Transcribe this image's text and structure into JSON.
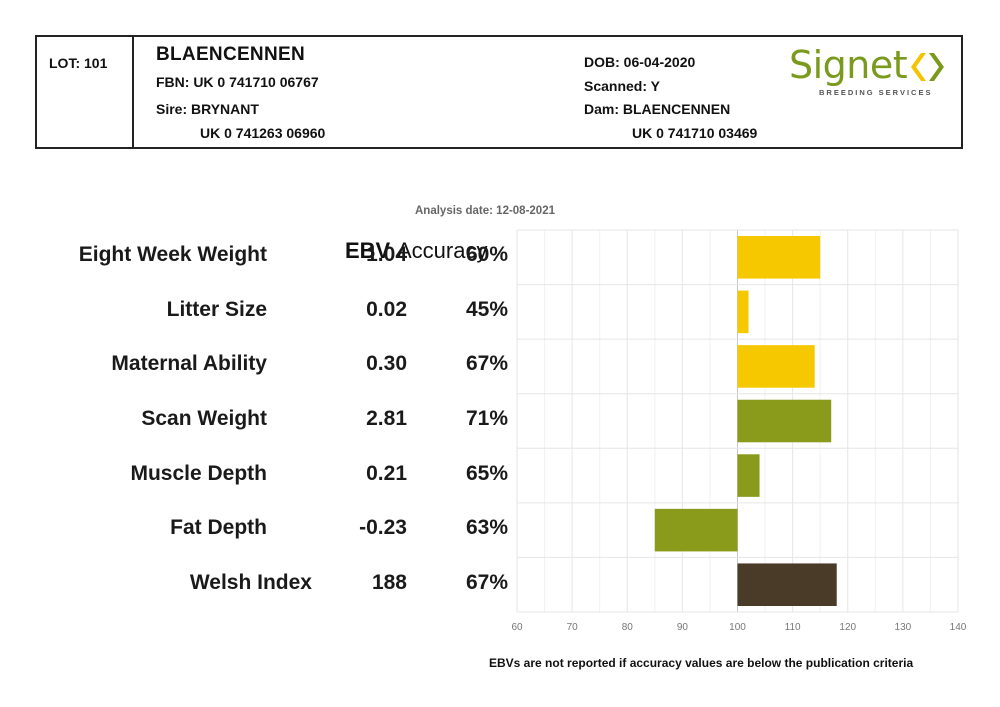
{
  "header": {
    "lot": "LOT: 101",
    "name": "BLAENCENNEN",
    "fbn": "FBN: UK 0 741710 06767",
    "sire_label": "Sire: BRYNANT",
    "sire_id": "UK 0 741263 06960",
    "dob": "DOB: 06-04-2020",
    "scanned": "Scanned: Y",
    "dam_label": "Dam: BLAENCENNEN",
    "dam_id": "UK 0 741710 03469"
  },
  "logo": {
    "word": "Signet",
    "subtitle": "BREEDING SERVICES",
    "colors": {
      "green": "#7a9a1e",
      "yellow": "#f4c400"
    }
  },
  "analysis_date": "Analysis date: 12-08-2021",
  "columns": {
    "ebv": "EBV",
    "accuracy": "Accuracy"
  },
  "footnote": "EBVs are not reported if accuracy values are below the publication criteria",
  "chart_data": {
    "type": "bar",
    "orientation": "horizontal",
    "baseline": 100,
    "xlim": [
      60,
      140
    ],
    "xticks": [
      60,
      70,
      80,
      90,
      100,
      110,
      120,
      130,
      140
    ],
    "grid": true,
    "categories": [
      "Eight Week Weight",
      "Litter Size",
      "Maternal Ability",
      "Scan Weight",
      "Muscle Depth",
      "Fat Depth",
      "Welsh Index"
    ],
    "ebv": [
      "1.04",
      "0.02",
      "0.30",
      "2.81",
      "0.21",
      "-0.23",
      "188"
    ],
    "accuracy": [
      "60%",
      "45%",
      "67%",
      "71%",
      "65%",
      "63%",
      "67%"
    ],
    "values": [
      115,
      102,
      114,
      117,
      104,
      85,
      118
    ],
    "colors": [
      "#f5c800",
      "#f5c800",
      "#f5c800",
      "#8a9a1a",
      "#8a9a1a",
      "#8a9a1a",
      "#4a3b28"
    ]
  }
}
